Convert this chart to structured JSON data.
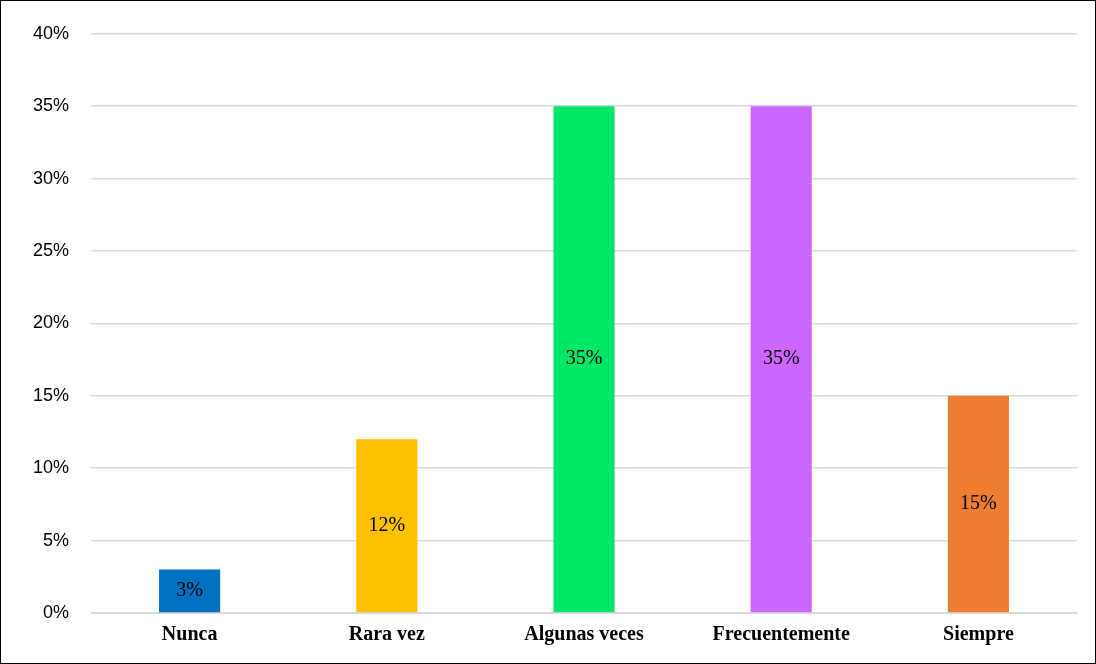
{
  "chart_data": {
    "type": "bar",
    "categories": [
      "Nunca",
      "Rara vez",
      "Algunas veces",
      "Frecuentemente",
      "Siempre"
    ],
    "values": [
      3,
      12,
      35,
      35,
      15
    ],
    "colors": [
      "#0070c0",
      "#ffc000",
      "#00e667",
      "#cc66ff",
      "#ed7d31"
    ],
    "value_labels": [
      "3%",
      "12%",
      "35%",
      "35%",
      "15%"
    ],
    "ylim": [
      0,
      40
    ],
    "yticks": [
      {
        "value": 0,
        "label": "0%"
      },
      {
        "value": 5,
        "label": "5%"
      },
      {
        "value": 10,
        "label": "10%"
      },
      {
        "value": 15,
        "label": "15%"
      },
      {
        "value": 20,
        "label": "20%"
      },
      {
        "value": 25,
        "label": "25%"
      },
      {
        "value": 30,
        "label": "30%"
      },
      {
        "value": 35,
        "label": "35%"
      },
      {
        "value": 40,
        "label": "40%"
      }
    ],
    "grid": "y",
    "legend": false
  }
}
